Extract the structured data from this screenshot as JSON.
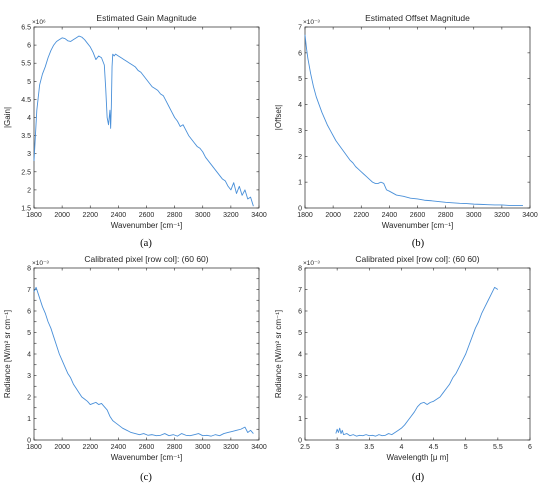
{
  "chart_data": [
    {
      "type": "line",
      "panel_label": "(a)",
      "title": "Estimated Gain Magnitude",
      "xlabel": "Wavenumber [cm⁻¹]",
      "ylabel": "|Gain|",
      "exponent_label": "×10⁶",
      "xlim": [
        1800,
        3400
      ],
      "ylim": [
        1.5,
        6.5
      ],
      "xticks": [
        1800,
        2000,
        2200,
        2400,
        2600,
        2800,
        3000,
        3200,
        3400
      ],
      "yticks": [
        1.5,
        2,
        2.5,
        3,
        3.5,
        4,
        4.5,
        5,
        5.5,
        6,
        6.5
      ],
      "ytick_labels": [
        "1.5",
        "2",
        "2.5",
        "3",
        "3.5",
        "4",
        "4.5",
        "5",
        "5.5",
        "6",
        "6.5"
      ],
      "color": "#4a90d9",
      "series": [
        {
          "x": [
            1800,
            1810,
            1820,
            1840,
            1860,
            1880,
            1900,
            1920,
            1940,
            1960,
            1980,
            2000,
            2020,
            2040,
            2060,
            2080,
            2100,
            2120,
            2140,
            2160,
            2180,
            2200,
            2220,
            2240,
            2260,
            2280,
            2300,
            2310,
            2320,
            2330,
            2340,
            2345,
            2350,
            2355,
            2360,
            2370,
            2380,
            2400,
            2420,
            2440,
            2460,
            2480,
            2500,
            2520,
            2540,
            2560,
            2580,
            2600,
            2620,
            2640,
            2660,
            2680,
            2700,
            2720,
            2740,
            2760,
            2780,
            2800,
            2820,
            2840,
            2860,
            2880,
            2900,
            2920,
            2940,
            2960,
            2980,
            3000,
            3020,
            3040,
            3060,
            3080,
            3100,
            3120,
            3140,
            3160,
            3180,
            3200,
            3220,
            3240,
            3260,
            3280,
            3300,
            3320,
            3340,
            3360
          ],
          "y": [
            2.8,
            3.5,
            4.2,
            4.9,
            5.2,
            5.4,
            5.65,
            5.85,
            6.0,
            6.1,
            6.15,
            6.2,
            6.18,
            6.12,
            6.1,
            6.15,
            6.2,
            6.25,
            6.22,
            6.15,
            6.05,
            5.95,
            5.8,
            5.6,
            5.7,
            5.65,
            5.45,
            4.8,
            4.0,
            3.8,
            4.2,
            3.7,
            4.3,
            5.4,
            5.75,
            5.7,
            5.75,
            5.7,
            5.65,
            5.6,
            5.55,
            5.5,
            5.45,
            5.4,
            5.3,
            5.25,
            5.15,
            5.05,
            4.95,
            4.85,
            4.8,
            4.75,
            4.65,
            4.6,
            4.45,
            4.3,
            4.15,
            4.0,
            3.9,
            3.75,
            3.8,
            3.65,
            3.5,
            3.4,
            3.3,
            3.2,
            3.15,
            3.05,
            2.9,
            2.8,
            2.7,
            2.6,
            2.5,
            2.4,
            2.3,
            2.25,
            2.1,
            2.0,
            2.2,
            1.9,
            2.1,
            1.85,
            2.0,
            1.75,
            1.8,
            1.55
          ]
        }
      ]
    },
    {
      "type": "line",
      "panel_label": "(b)",
      "title": "Estimated Offset Magnitude",
      "xlabel": "Wavenumber [cm⁻¹]",
      "ylabel": "|Offset|",
      "exponent_label": "×10⁻³",
      "xlim": [
        1800,
        3400
      ],
      "ylim": [
        0,
        7
      ],
      "xticks": [
        1800,
        2000,
        2200,
        2400,
        2600,
        2800,
        3000,
        3200,
        3400
      ],
      "yticks": [
        0,
        1,
        2,
        3,
        4,
        5,
        6,
        7
      ],
      "ytick_labels": [
        "0",
        "1",
        "2",
        "3",
        "4",
        "5",
        "6",
        "7"
      ],
      "color": "#4a90d9",
      "series": [
        {
          "x": [
            1800,
            1810,
            1820,
            1840,
            1860,
            1880,
            1900,
            1920,
            1940,
            1960,
            1980,
            2000,
            2020,
            2040,
            2060,
            2080,
            2100,
            2120,
            2140,
            2160,
            2180,
            2200,
            2220,
            2240,
            2260,
            2280,
            2300,
            2320,
            2340,
            2360,
            2380,
            2400,
            2450,
            2500,
            2550,
            2600,
            2650,
            2700,
            2750,
            2800,
            2850,
            2900,
            2950,
            3000,
            3050,
            3100,
            3150,
            3200,
            3250,
            3300,
            3350
          ],
          "y": [
            6.7,
            6.2,
            5.8,
            5.2,
            4.7,
            4.3,
            4.0,
            3.7,
            3.45,
            3.2,
            3.0,
            2.8,
            2.6,
            2.45,
            2.3,
            2.15,
            2.0,
            1.85,
            1.75,
            1.6,
            1.5,
            1.4,
            1.3,
            1.2,
            1.1,
            1.0,
            0.95,
            0.95,
            1.0,
            0.95,
            0.7,
            0.65,
            0.5,
            0.45,
            0.38,
            0.35,
            0.3,
            0.28,
            0.25,
            0.22,
            0.2,
            0.18,
            0.17,
            0.15,
            0.14,
            0.13,
            0.12,
            0.12,
            0.1,
            0.1,
            0.1
          ]
        }
      ]
    },
    {
      "type": "line",
      "panel_label": "(c)",
      "title": "Calibrated pixel [row col]: (60  60)",
      "xlabel": "Wavenumber [cm⁻¹]",
      "ylabel": "Radiance [W/m² sr cm⁻¹]",
      "exponent_label": "×10⁻³",
      "xlim": [
        1800,
        3400
      ],
      "ylim": [
        0,
        8
      ],
      "xticks": [
        1800,
        2000,
        2200,
        2400,
        2600,
        2800,
        3000,
        3200,
        3400
      ],
      "yticks": [
        0,
        0.5,
        1,
        1.5,
        2,
        2.5,
        3,
        3.5,
        4,
        4.5,
        5,
        5.5,
        6,
        6.5,
        7,
        7.5,
        8
      ],
      "ytick_labels": [
        "0",
        "",
        "1",
        "",
        "2",
        "",
        "3",
        "",
        "4",
        "",
        "5",
        "",
        "6",
        "",
        "7",
        "",
        "8"
      ],
      "color": "#4a90d9",
      "series": [
        {
          "x": [
            1800,
            1815,
            1830,
            1845,
            1860,
            1880,
            1900,
            1920,
            1940,
            1960,
            1980,
            2000,
            2020,
            2040,
            2060,
            2080,
            2100,
            2120,
            2140,
            2160,
            2180,
            2200,
            2220,
            2240,
            2260,
            2280,
            2300,
            2320,
            2340,
            2360,
            2380,
            2400,
            2430,
            2460,
            2490,
            2520,
            2550,
            2580,
            2610,
            2640,
            2670,
            2700,
            2730,
            2760,
            2790,
            2820,
            2850,
            2880,
            2910,
            2940,
            2970,
            3000,
            3030,
            3060,
            3090,
            3120,
            3150,
            3180,
            3210,
            3240,
            3270,
            3300,
            3320,
            3340,
            3360
          ],
          "y": [
            6.9,
            7.1,
            6.8,
            6.5,
            6.2,
            5.9,
            5.5,
            5.2,
            4.8,
            4.4,
            4.0,
            3.7,
            3.4,
            3.1,
            2.9,
            2.6,
            2.4,
            2.2,
            2.0,
            1.9,
            1.8,
            1.65,
            1.7,
            1.75,
            1.65,
            1.7,
            1.55,
            1.4,
            1.1,
            0.9,
            0.8,
            0.7,
            0.55,
            0.45,
            0.35,
            0.3,
            0.25,
            0.3,
            0.22,
            0.25,
            0.2,
            0.22,
            0.3,
            0.2,
            0.25,
            0.18,
            0.3,
            0.22,
            0.2,
            0.25,
            0.3,
            0.2,
            0.22,
            0.18,
            0.25,
            0.2,
            0.3,
            0.35,
            0.4,
            0.45,
            0.5,
            0.6,
            0.35,
            0.45,
            0.3
          ]
        }
      ]
    },
    {
      "type": "line",
      "panel_label": "(d)",
      "title": "Calibrated pixel [row col]: (60  60)",
      "xlabel": "Wavelength [μ m]",
      "ylabel": "Radiance [W/m² sr cm⁻¹]",
      "exponent_label": "×10⁻³",
      "xlim": [
        2.5,
        6
      ],
      "ylim": [
        0,
        8
      ],
      "xticks": [
        2.5,
        3,
        3.5,
        4,
        4.5,
        5,
        5.5,
        6
      ],
      "yticks": [
        0,
        1,
        2,
        3,
        4,
        5,
        6,
        7,
        8
      ],
      "ytick_labels": [
        "0",
        "1",
        "2",
        "3",
        "4",
        "5",
        "6",
        "7",
        "8"
      ],
      "color": "#4a90d9",
      "series": [
        {
          "x": [
            2.98,
            3.0,
            3.02,
            3.04,
            3.06,
            3.08,
            3.1,
            3.15,
            3.2,
            3.25,
            3.3,
            3.35,
            3.4,
            3.45,
            3.5,
            3.55,
            3.6,
            3.65,
            3.7,
            3.75,
            3.8,
            3.85,
            3.9,
            3.95,
            4.0,
            4.05,
            4.1,
            4.15,
            4.2,
            4.25,
            4.3,
            4.35,
            4.4,
            4.45,
            4.5,
            4.55,
            4.6,
            4.65,
            4.7,
            4.75,
            4.8,
            4.85,
            4.9,
            4.95,
            5.0,
            5.05,
            5.1,
            5.15,
            5.2,
            5.25,
            5.3,
            5.35,
            5.4,
            5.45,
            5.5
          ],
          "y": [
            0.3,
            0.5,
            0.35,
            0.55,
            0.3,
            0.45,
            0.25,
            0.3,
            0.2,
            0.25,
            0.18,
            0.22,
            0.2,
            0.25,
            0.2,
            0.22,
            0.18,
            0.25,
            0.2,
            0.22,
            0.3,
            0.25,
            0.35,
            0.45,
            0.55,
            0.7,
            0.9,
            1.1,
            1.3,
            1.55,
            1.7,
            1.75,
            1.65,
            1.75,
            1.8,
            1.9,
            2.0,
            2.2,
            2.4,
            2.6,
            2.9,
            3.1,
            3.4,
            3.7,
            4.0,
            4.4,
            4.8,
            5.2,
            5.5,
            5.9,
            6.2,
            6.5,
            6.8,
            7.1,
            7.0
          ]
        }
      ]
    }
  ]
}
